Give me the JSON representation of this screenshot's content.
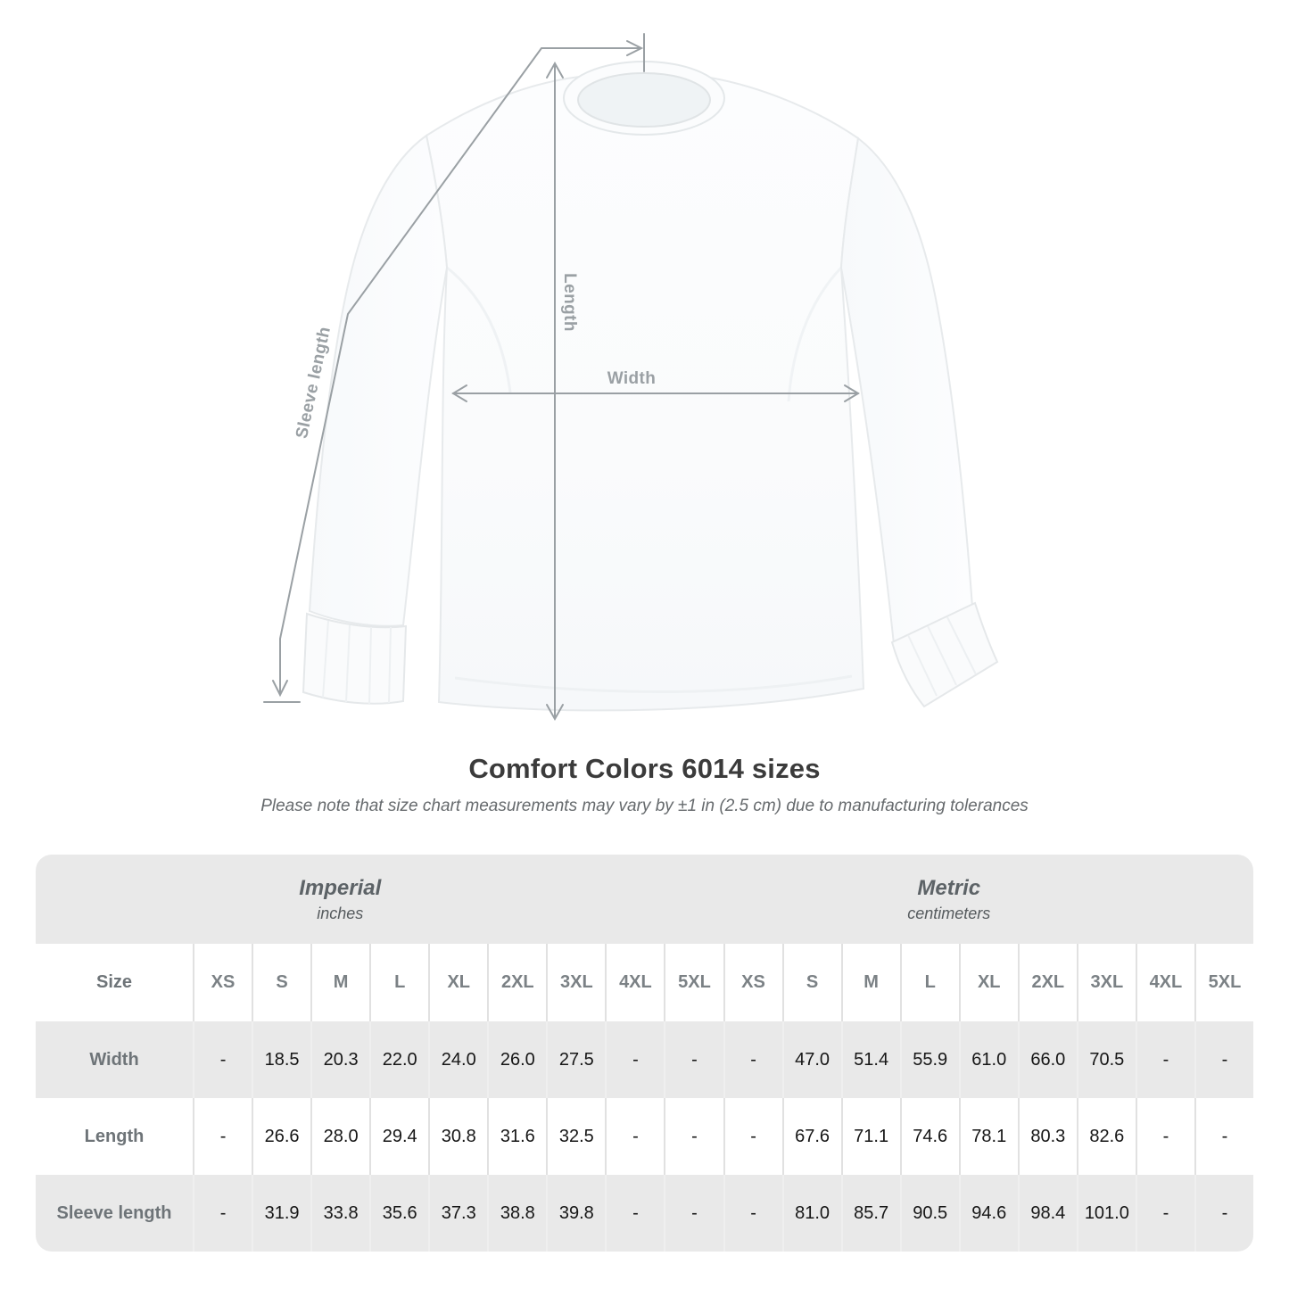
{
  "diagram": {
    "labels": {
      "sleeve": "Sleeve length",
      "length": "Length",
      "width": "Width"
    }
  },
  "title": "Comfort Colors 6014 sizes",
  "subtitle": "Please note that size chart measurements may vary by ±1 in (2.5 cm) due to manufacturing tolerances",
  "table": {
    "size_label": "Size",
    "unit_groups": [
      {
        "name": "Imperial",
        "unit": "inches"
      },
      {
        "name": "Metric",
        "unit": "centimeters"
      }
    ],
    "sizes": [
      "XS",
      "S",
      "M",
      "L",
      "XL",
      "2XL",
      "3XL",
      "4XL",
      "5XL"
    ],
    "rows": [
      {
        "label": "Width",
        "imperial": [
          "-",
          "18.5",
          "20.3",
          "22.0",
          "24.0",
          "26.0",
          "27.5",
          "-",
          "-"
        ],
        "metric": [
          "-",
          "47.0",
          "51.4",
          "55.9",
          "61.0",
          "66.0",
          "70.5",
          "-",
          "-"
        ]
      },
      {
        "label": "Length",
        "imperial": [
          "-",
          "26.6",
          "28.0",
          "29.4",
          "30.8",
          "31.6",
          "32.5",
          "-",
          "-"
        ],
        "metric": [
          "-",
          "67.6",
          "71.1",
          "74.6",
          "78.1",
          "80.3",
          "82.6",
          "-",
          "-"
        ]
      },
      {
        "label": "Sleeve length",
        "imperial": [
          "-",
          "31.9",
          "33.8",
          "35.6",
          "37.3",
          "38.8",
          "39.8",
          "-",
          "-"
        ],
        "metric": [
          "-",
          "81.0",
          "85.7",
          "90.5",
          "94.6",
          "98.4",
          "101.0",
          "-",
          "-"
        ]
      }
    ]
  },
  "chart_data": {
    "type": "table",
    "title": "Comfort Colors 6014 sizes",
    "note": "Please note that size chart measurements may vary by ±1 in (2.5 cm) due to manufacturing tolerances",
    "column_groups": [
      "Imperial (inches)",
      "Metric (centimeters)"
    ],
    "columns": [
      "XS",
      "S",
      "M",
      "L",
      "XL",
      "2XL",
      "3XL",
      "4XL",
      "5XL"
    ],
    "rows": [
      {
        "measurement": "Width",
        "imperial_in": [
          null,
          18.5,
          20.3,
          22.0,
          24.0,
          26.0,
          27.5,
          null,
          null
        ],
        "metric_cm": [
          null,
          47.0,
          51.4,
          55.9,
          61.0,
          66.0,
          70.5,
          null,
          null
        ]
      },
      {
        "measurement": "Length",
        "imperial_in": [
          null,
          26.6,
          28.0,
          29.4,
          30.8,
          31.6,
          32.5,
          null,
          null
        ],
        "metric_cm": [
          null,
          67.6,
          71.1,
          74.6,
          78.1,
          80.3,
          82.6,
          null,
          null
        ]
      },
      {
        "measurement": "Sleeve length",
        "imperial_in": [
          null,
          31.9,
          33.8,
          35.6,
          37.3,
          38.8,
          39.8,
          null,
          null
        ],
        "metric_cm": [
          null,
          81.0,
          85.7,
          90.5,
          94.6,
          98.4,
          101.0,
          null,
          null
        ]
      }
    ]
  },
  "colors": {
    "measure_line": "#9aa0a4",
    "measure_label": "#9aa0a4",
    "title_text": "#3b3b3b",
    "band_bg": "#e9e9e9",
    "row_alt_bg": "#e9e9e9",
    "header_text": "#7b8185",
    "value_text": "#161616"
  }
}
